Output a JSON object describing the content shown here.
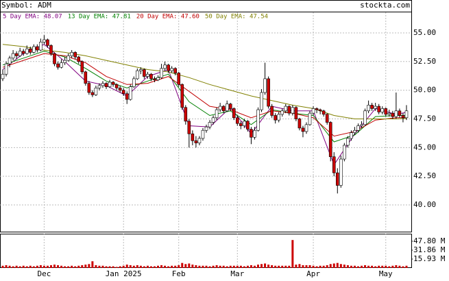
{
  "chart_data": {
    "type": "candlestick",
    "symbol": "Symbol: ADM",
    "site": "stockta.com",
    "categories": [
      null,
      null,
      null,
      null,
      null,
      null,
      null,
      null,
      null,
      null,
      null,
      null,
      "Dec",
      null,
      null,
      null,
      null,
      null,
      null,
      null,
      null,
      null,
      null,
      null,
      null,
      null,
      null,
      null,
      null,
      null,
      null,
      null,
      null,
      null,
      null,
      "Jan 2025",
      null,
      null,
      null,
      null,
      null,
      null,
      null,
      null,
      null,
      null,
      null,
      null,
      null,
      null,
      null,
      "Feb",
      null,
      null,
      null,
      null,
      null,
      null,
      null,
      null,
      null,
      null,
      null,
      null,
      null,
      null,
      null,
      null,
      "Mar",
      null,
      null,
      null,
      null,
      null,
      null,
      null,
      null,
      null,
      null,
      null,
      null,
      null,
      null,
      null,
      null,
      null,
      null,
      null,
      null,
      null,
      "Apr",
      null,
      null,
      null,
      null,
      null,
      null,
      null,
      null,
      null,
      null,
      null,
      null,
      null,
      null,
      null,
      null,
      null,
      null,
      null,
      null,
      "May",
      null,
      null,
      null,
      null,
      null,
      null
    ],
    "candles": [
      [
        51.0,
        51.8,
        50.8,
        51.4
      ],
      [
        51.4,
        52.5,
        51.2,
        52.3
      ],
      [
        52.3,
        53.0,
        52.0,
        52.8
      ],
      [
        52.8,
        53.5,
        52.6,
        53.2
      ],
      [
        53.2,
        53.4,
        52.7,
        53.0
      ],
      [
        53.0,
        53.7,
        52.9,
        53.4
      ],
      [
        53.4,
        53.6,
        53.0,
        53.2
      ],
      [
        53.2,
        53.9,
        53.1,
        53.6
      ],
      [
        53.6,
        53.8,
        53.1,
        53.3
      ],
      [
        53.3,
        54.0,
        53.2,
        53.8
      ],
      [
        53.8,
        54.0,
        53.3,
        53.5
      ],
      [
        53.5,
        54.5,
        53.4,
        54.2
      ],
      [
        54.2,
        54.8,
        54.0,
        54.4
      ],
      [
        54.4,
        54.5,
        53.7,
        53.9
      ],
      [
        53.9,
        54.0,
        53.0,
        53.2
      ],
      [
        53.2,
        53.3,
        52.1,
        52.3
      ],
      [
        52.3,
        52.5,
        51.8,
        52.0
      ],
      [
        52.0,
        52.7,
        51.9,
        52.4
      ],
      [
        52.4,
        52.9,
        52.2,
        52.6
      ],
      [
        52.6,
        53.2,
        52.5,
        53.0
      ],
      [
        53.0,
        53.5,
        52.8,
        53.3
      ],
      [
        53.3,
        53.4,
        52.7,
        52.9
      ],
      [
        52.9,
        53.0,
        52.3,
        52.5
      ],
      [
        52.5,
        52.6,
        51.4,
        51.6
      ],
      [
        51.6,
        51.7,
        50.4,
        50.6
      ],
      [
        50.6,
        50.8,
        49.6,
        49.8
      ],
      [
        49.8,
        50.0,
        49.4,
        49.6
      ],
      [
        49.6,
        50.4,
        49.5,
        50.2
      ],
      [
        50.2,
        50.6,
        50.0,
        50.4
      ],
      [
        50.4,
        50.8,
        50.2,
        50.6
      ],
      [
        50.6,
        50.7,
        50.1,
        50.3
      ],
      [
        50.3,
        50.9,
        50.2,
        50.7
      ],
      [
        50.7,
        50.8,
        50.3,
        50.5
      ],
      [
        50.5,
        50.6,
        50.0,
        50.2
      ],
      [
        50.2,
        50.4,
        49.8,
        50.0
      ],
      [
        50.0,
        50.2,
        49.5,
        49.7
      ],
      [
        49.7,
        49.9,
        48.8,
        49.2
      ],
      [
        49.2,
        50.5,
        49.1,
        50.3
      ],
      [
        50.3,
        51.2,
        50.2,
        51.0
      ],
      [
        51.0,
        51.9,
        50.9,
        51.7
      ],
      [
        51.7,
        52.0,
        51.4,
        51.8
      ],
      [
        51.8,
        51.9,
        51.0,
        51.2
      ],
      [
        51.2,
        51.6,
        51.0,
        51.4
      ],
      [
        51.4,
        51.5,
        50.8,
        51.0
      ],
      [
        51.0,
        51.2,
        50.7,
        50.9
      ],
      [
        50.9,
        51.3,
        50.8,
        51.1
      ],
      [
        51.1,
        52.3,
        51.0,
        51.9
      ],
      [
        51.9,
        52.5,
        51.7,
        52.2
      ],
      [
        52.2,
        52.3,
        51.5,
        51.7
      ],
      [
        51.7,
        52.1,
        51.5,
        51.9
      ],
      [
        51.9,
        52.0,
        51.3,
        51.5
      ],
      [
        51.5,
        51.6,
        50.3,
        50.5
      ],
      [
        50.5,
        50.6,
        48.3,
        48.5
      ],
      [
        48.5,
        48.7,
        47.0,
        47.3
      ],
      [
        47.3,
        47.5,
        45.0,
        46.2
      ],
      [
        46.2,
        46.5,
        45.2,
        45.6
      ],
      [
        45.6,
        46.0,
        45.0,
        45.4
      ],
      [
        45.4,
        46.0,
        45.2,
        45.8
      ],
      [
        45.8,
        46.7,
        45.6,
        46.5
      ],
      [
        46.5,
        47.0,
        46.3,
        46.8
      ],
      [
        46.8,
        47.4,
        46.6,
        47.2
      ],
      [
        47.2,
        47.8,
        47.0,
        47.6
      ],
      [
        47.6,
        48.5,
        47.4,
        48.3
      ],
      [
        48.3,
        48.9,
        48.1,
        48.6
      ],
      [
        48.6,
        48.7,
        48.0,
        48.2
      ],
      [
        48.2,
        49.1,
        48.1,
        48.8
      ],
      [
        48.8,
        48.9,
        48.2,
        48.4
      ],
      [
        48.4,
        48.5,
        47.4,
        47.6
      ],
      [
        47.6,
        47.8,
        46.9,
        47.1
      ],
      [
        47.1,
        47.3,
        46.6,
        46.9
      ],
      [
        46.9,
        47.5,
        46.7,
        47.3
      ],
      [
        47.3,
        47.4,
        46.4,
        46.6
      ],
      [
        46.6,
        46.8,
        45.3,
        45.9
      ],
      [
        45.9,
        46.8,
        45.7,
        46.5
      ],
      [
        46.5,
        48.5,
        46.4,
        48.3
      ],
      [
        48.3,
        50.1,
        48.1,
        49.8
      ],
      [
        49.8,
        52.4,
        49.6,
        51.0
      ],
      [
        51.0,
        51.2,
        48.4,
        48.6
      ],
      [
        48.6,
        48.8,
        47.6,
        47.8
      ],
      [
        47.8,
        48.0,
        47.1,
        47.4
      ],
      [
        47.4,
        48.1,
        47.2,
        47.9
      ],
      [
        47.9,
        48.4,
        47.7,
        48.2
      ],
      [
        48.2,
        48.8,
        48.0,
        48.6
      ],
      [
        48.6,
        48.7,
        47.8,
        48.0
      ],
      [
        48.0,
        48.7,
        47.8,
        48.5
      ],
      [
        48.5,
        48.6,
        47.3,
        47.5
      ],
      [
        47.5,
        47.6,
        46.5,
        46.7
      ],
      [
        46.7,
        46.9,
        45.9,
        46.4
      ],
      [
        46.4,
        47.2,
        46.2,
        47.0
      ],
      [
        47.0,
        48.2,
        46.9,
        48.0
      ],
      [
        48.0,
        48.6,
        47.8,
        48.4
      ],
      [
        48.4,
        48.5,
        48.0,
        48.3
      ],
      [
        48.3,
        48.4,
        47.9,
        48.2
      ],
      [
        48.2,
        48.3,
        47.7,
        47.9
      ],
      [
        47.9,
        48.0,
        47.0,
        47.2
      ],
      [
        47.2,
        47.3,
        43.8,
        44.2
      ],
      [
        44.2,
        44.6,
        42.5,
        42.8
      ],
      [
        42.8,
        43.2,
        41.0,
        41.7
      ],
      [
        41.7,
        44.3,
        41.5,
        44.0
      ],
      [
        44.0,
        45.4,
        43.8,
        45.2
      ],
      [
        45.2,
        46.0,
        45.0,
        45.8
      ],
      [
        45.8,
        46.5,
        45.6,
        46.3
      ],
      [
        46.3,
        46.8,
        46.1,
        46.5
      ],
      [
        46.5,
        47.1,
        46.3,
        46.9
      ],
      [
        46.9,
        47.3,
        46.7,
        47.0
      ],
      [
        47.0,
        48.4,
        46.9,
        48.2
      ],
      [
        48.2,
        49.1,
        48.0,
        48.7
      ],
      [
        48.7,
        48.9,
        48.2,
        48.4
      ],
      [
        48.4,
        48.9,
        48.2,
        48.6
      ],
      [
        48.6,
        48.8,
        47.9,
        48.1
      ],
      [
        48.1,
        48.6,
        47.9,
        48.4
      ],
      [
        48.4,
        48.5,
        47.7,
        47.9
      ],
      [
        47.9,
        48.3,
        47.7,
        48.0
      ],
      [
        48.0,
        48.2,
        47.5,
        47.7
      ],
      [
        47.7,
        49.8,
        47.5,
        48.2
      ],
      [
        48.2,
        48.4,
        47.6,
        47.8
      ],
      [
        47.8,
        48.0,
        47.2,
        47.6
      ],
      [
        47.6,
        48.7,
        47.4,
        48.2
      ]
    ],
    "volume": [
      4,
      5,
      4,
      3,
      4,
      3,
      4,
      3,
      4,
      3,
      4,
      5,
      4,
      4,
      5,
      6,
      5,
      4,
      3,
      3,
      4,
      3,
      4,
      5,
      6,
      7,
      12,
      5,
      4,
      4,
      3,
      3,
      3,
      2,
      3,
      4,
      6,
      5,
      4,
      5,
      4,
      3,
      4,
      3,
      3,
      4,
      5,
      4,
      3,
      4,
      4,
      5,
      9,
      7,
      8,
      6,
      5,
      4,
      4,
      4,
      3,
      4,
      5,
      4,
      4,
      3,
      4,
      4,
      4,
      4,
      3,
      4,
      5,
      4,
      6,
      7,
      8,
      6,
      5,
      4,
      4,
      4,
      4,
      4,
      50,
      6,
      7,
      5,
      5,
      5,
      4,
      3,
      4,
      4,
      5,
      7,
      8,
      9,
      7,
      6,
      5,
      4,
      4,
      3,
      4,
      5,
      4,
      4,
      3,
      4,
      4,
      4,
      3,
      4,
      5,
      4,
      3,
      4
    ],
    "ema": {
      "x": [
        0,
        6,
        12,
        18,
        24,
        30,
        36,
        42,
        48,
        54,
        60,
        66,
        72,
        78,
        84,
        90,
        96,
        102,
        108,
        114,
        117
      ],
      "series": [
        {
          "name": "5 Day EMA: 48.07",
          "color": "#800080",
          "values": [
            51.8,
            53.2,
            54.0,
            52.5,
            50.8,
            50.4,
            49.5,
            51.2,
            51.8,
            46.9,
            46.8,
            48.5,
            46.2,
            48.6,
            48.2,
            48.2,
            43.5,
            46.2,
            48.4,
            47.9,
            48.07
          ]
        },
        {
          "name": "13 Day EMA: 47.81",
          "color": "#008000",
          "values": [
            52.2,
            52.8,
            53.4,
            52.9,
            51.9,
            50.8,
            50.2,
            50.8,
            51.4,
            49.0,
            47.8,
            48.2,
            47.0,
            48.3,
            48.0,
            47.8,
            45.5,
            46.1,
            47.7,
            47.8,
            47.81
          ]
        },
        {
          "name": "20 Day EMA: 47.60",
          "color": "#c00000",
          "values": [
            52.0,
            52.6,
            53.2,
            53.0,
            52.4,
            51.2,
            50.5,
            50.6,
            51.2,
            49.9,
            48.6,
            48.3,
            47.6,
            48.2,
            48.0,
            47.6,
            46.0,
            46.4,
            47.4,
            47.6,
            47.6
          ]
        },
        {
          "name": "50 Day EMA: 47.54",
          "color": "#808000",
          "values": [
            54.0,
            53.8,
            53.5,
            53.3,
            53.0,
            52.6,
            52.2,
            51.8,
            51.6,
            51.1,
            50.5,
            50.0,
            49.5,
            49.1,
            48.7,
            48.4,
            47.8,
            47.5,
            47.5,
            47.5,
            47.54
          ]
        }
      ]
    },
    "up_color": "#ffffff",
    "down_color": "#cc0000",
    "volume_color": "#cc0000",
    "ylim": [
      37.67,
      56.79
    ],
    "yticks": [
      {
        "value": 40,
        "label": "40.00"
      },
      {
        "value": 42.5,
        "label": "42.50"
      },
      {
        "value": 45,
        "label": "45.00"
      },
      {
        "value": 47.5,
        "label": "47.50"
      },
      {
        "value": 50,
        "label": "50.00"
      },
      {
        "value": 52.5,
        "label": "52.50"
      },
      {
        "value": 55,
        "label": "55.00"
      }
    ],
    "y2lim": [
      0,
      61.3
    ],
    "y2ticks": [
      {
        "value": 15.93,
        "label": "15.93 M"
      },
      {
        "value": 31.86,
        "label": "31.86 M"
      },
      {
        "value": 47.8,
        "label": "47.80 M"
      }
    ],
    "grid": true
  }
}
